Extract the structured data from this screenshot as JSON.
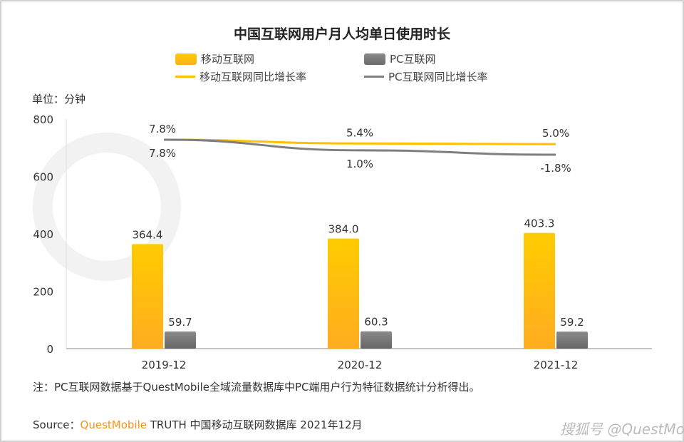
{
  "chart_data": {
    "type": "bar",
    "title": "中国互联网用户月人均单日使用时长",
    "unit_label": "单位：分钟",
    "categories": [
      "2019-12",
      "2020-12",
      "2021-12"
    ],
    "ylim": [
      0,
      800
    ],
    "yticks": [
      0,
      200,
      400,
      600,
      800
    ],
    "grid": false,
    "legend_position": "top",
    "series": [
      {
        "name": "移动互联网",
        "type": "bar",
        "color": "#ffc000",
        "values": [
          364.4,
          384.0,
          403.3
        ],
        "labels": [
          "364.4",
          "384.0",
          "403.3"
        ]
      },
      {
        "name": "PC互联网",
        "type": "bar",
        "color": "#7f7f7f",
        "values": [
          59.7,
          60.3,
          59.2
        ],
        "labels": [
          "59.7",
          "60.3",
          "59.2"
        ]
      },
      {
        "name": "移动互联网同比增长率",
        "type": "line",
        "axis": "secondary",
        "color": "#ffc000",
        "values": [
          7.8,
          5.4,
          5.0
        ],
        "labels": [
          "7.8%",
          "5.4%",
          "5.0%"
        ]
      },
      {
        "name": "PC互联网同比增长率",
        "type": "line",
        "axis": "secondary",
        "color": "#7f7f7f",
        "values": [
          7.8,
          1.0,
          -1.8
        ],
        "labels": [
          "7.8%",
          "1.0%",
          "-1.8%"
        ]
      }
    ]
  },
  "note": "注：PC互联网数据基于QuestMobile全域流量数据库中PC端用户行为特征数据统计分析得出。",
  "source": {
    "prefix": "Source：",
    "brand": "QuestMobile",
    "rest": " TRUTH 中国移动互联网数据库 2021年12月"
  },
  "watermark": "QUEST MOBILE",
  "credit": "搜狐号 @QuestMobile"
}
